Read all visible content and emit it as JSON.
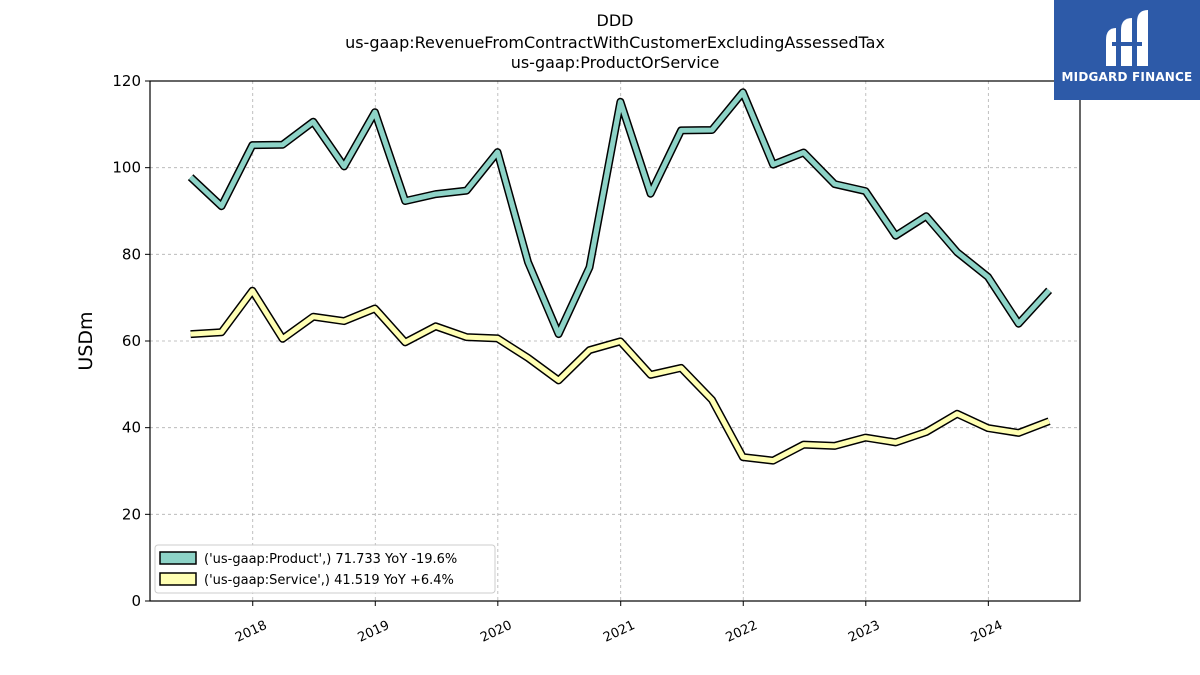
{
  "chart_data": {
    "type": "line",
    "title": [
      "DDD",
      "us-gaap:RevenueFromContractWithCustomerExcludingAssessedTax",
      "us-gaap:ProductOrService"
    ],
    "xlabel": "",
    "ylabel": "USDm",
    "ylim": [
      0,
      120
    ],
    "yticks": [
      "0",
      "20",
      "40",
      "60",
      "80",
      "100",
      "120"
    ],
    "xticks": [
      "2018",
      "2019",
      "2020",
      "2021",
      "2022",
      "2023",
      "2024"
    ],
    "grid": true,
    "legend_position": "lower-left",
    "x": [
      "2017-06-30",
      "2017-09-30",
      "2017-12-31",
      "2018-03-31",
      "2018-06-30",
      "2018-09-30",
      "2018-12-31",
      "2019-03-31",
      "2019-06-30",
      "2019-09-30",
      "2019-12-31",
      "2020-03-31",
      "2020-06-30",
      "2020-09-30",
      "2020-12-31",
      "2021-03-31",
      "2021-06-30",
      "2021-09-30",
      "2021-12-31",
      "2022-03-31",
      "2022-06-30",
      "2022-09-30",
      "2022-12-31",
      "2023-03-31",
      "2023-06-30",
      "2023-09-30",
      "2023-12-31",
      "2024-03-31",
      "2024-06-30"
    ],
    "series": [
      {
        "name": "('us-gaap:Product',) 71.733 YoY -19.6%",
        "color": "#8dd3c7",
        "values": [
          97.8,
          91.1,
          105.2,
          105.3,
          110.6,
          100.3,
          112.8,
          92.3,
          93.9,
          94.7,
          103.6,
          78.2,
          61.6,
          77.0,
          115.2,
          94.0,
          108.6,
          108.7,
          117.4,
          100.7,
          103.5,
          96.2,
          94.6,
          84.3,
          88.8,
          80.5,
          74.8,
          64.0,
          71.7
        ]
      },
      {
        "name": "('us-gaap:Service',) 41.519 YoY +6.4%",
        "color": "#ffffb3",
        "values": [
          61.6,
          62.0,
          71.6,
          60.5,
          65.6,
          64.6,
          67.5,
          59.7,
          63.4,
          60.9,
          60.6,
          56.1,
          50.9,
          57.9,
          59.9,
          52.2,
          53.8,
          46.4,
          33.2,
          32.4,
          36.1,
          35.8,
          37.7,
          36.6,
          39.0,
          43.2,
          39.9,
          38.8,
          41.5
        ]
      }
    ]
  },
  "logo": {
    "text": "MIDGARD FINANCE",
    "color": "#2d5aa8"
  }
}
